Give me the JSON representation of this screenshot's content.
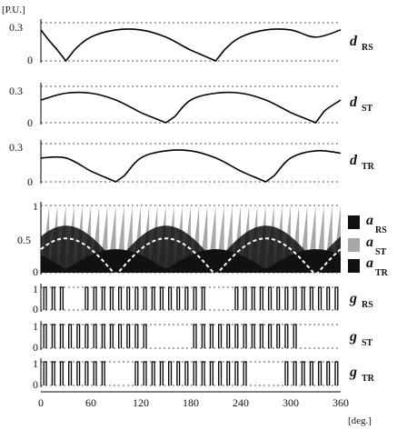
{
  "chart_data": {
    "type": "line",
    "y_unit_label": "[P.U.]",
    "x_unit_label": "[deg.]",
    "xlim": [
      0,
      360
    ],
    "x_ticks": [
      "0",
      "60",
      "120",
      "180",
      "240",
      "300",
      "360"
    ],
    "panels": [
      {
        "id": "dRS",
        "kind": "line",
        "label_main": "d",
        "label_sub": "RS",
        "ylim": [
          0,
          0.32
        ],
        "y_ticks": [
          "0.3",
          "0"
        ],
        "series": [
          {
            "x": [
              0,
              10,
              20,
              30,
              40,
              60,
              90,
              120,
              150,
              180,
              210,
              220,
              240,
              270,
              300,
              330,
              360
            ],
            "y": [
              0.26,
              0.17,
              0.09,
              0,
              0.09,
              0.2,
              0.26,
              0.26,
              0.2,
              0.09,
              0,
              0.09,
              0.2,
              0.26,
              0.26,
              0.2,
              0.26
            ]
          }
        ]
      },
      {
        "id": "dST",
        "kind": "line",
        "label_main": "d",
        "label_sub": "ST",
        "ylim": [
          0,
          0.32
        ],
        "y_ticks": [
          "0.3",
          "0"
        ],
        "series": [
          {
            "x": [
              0,
              30,
              60,
              90,
              120,
              140,
              150,
              160,
              180,
              210,
              240,
              270,
              300,
              320,
              330,
              340,
              360
            ],
            "y": [
              0.2,
              0.26,
              0.26,
              0.2,
              0.09,
              0.03,
              0,
              0.05,
              0.2,
              0.26,
              0.26,
              0.2,
              0.09,
              0.03,
              0,
              0.1,
              0.2
            ]
          }
        ]
      },
      {
        "id": "dTR",
        "kind": "line",
        "label_main": "d",
        "label_sub": "TR",
        "ylim": [
          0,
          0.32
        ],
        "y_ticks": [
          "0.3",
          "0"
        ],
        "series": [
          {
            "x": [
              0,
              30,
              60,
              80,
              90,
              100,
              120,
              150,
              180,
              210,
              240,
              260,
              270,
              280,
              300,
              330,
              360
            ],
            "y": [
              0.2,
              0.2,
              0.09,
              0.03,
              0,
              0.05,
              0.2,
              0.26,
              0.26,
              0.2,
              0.09,
              0.03,
              0,
              0.05,
              0.2,
              0.26,
              0.24
            ]
          }
        ]
      },
      {
        "id": "ramps",
        "kind": "area",
        "ylim": [
          0,
          1
        ],
        "y_ticks": [
          "1",
          "0.5",
          "0"
        ],
        "carrier_periods": 36,
        "legend": [
          {
            "main": "a",
            "sub": "RS",
            "color": "#111111"
          },
          {
            "main": "a",
            "sub": "ST",
            "color": "#a8a8a8"
          },
          {
            "main": "a",
            "sub": "TR",
            "color": "#111111"
          }
        ]
      },
      {
        "id": "gRS",
        "kind": "pulses",
        "label_main": "g",
        "label_sub": "RS",
        "ylim": [
          0,
          1
        ],
        "y_ticks": [
          "1",
          "0"
        ],
        "pulse_angles": [
          5,
          15,
          25,
          55,
          65,
          75,
          85,
          95,
          105,
          115,
          125,
          135,
          145,
          155,
          165,
          175,
          185,
          195,
          235,
          245,
          255,
          265,
          275,
          285,
          295,
          305,
          315,
          325,
          335,
          345,
          355
        ],
        "pulse_width_deg": 3
      },
      {
        "id": "gST",
        "kind": "pulses",
        "label_main": "g",
        "label_sub": "ST",
        "ylim": [
          0,
          1
        ],
        "y_ticks": [
          "1",
          "0"
        ],
        "pulse_angles": [
          5,
          15,
          25,
          35,
          45,
          55,
          65,
          75,
          85,
          95,
          105,
          115,
          125,
          185,
          195,
          205,
          215,
          225,
          235,
          245,
          255,
          265,
          275,
          285,
          295,
          305
        ],
        "pulse_width_deg": 3
      },
      {
        "id": "gTR",
        "kind": "pulses",
        "label_main": "g",
        "label_sub": "TR",
        "ylim": [
          0,
          1
        ],
        "y_ticks": [
          "1",
          "0"
        ],
        "pulse_angles": [
          5,
          15,
          25,
          35,
          45,
          55,
          65,
          75,
          115,
          125,
          135,
          145,
          155,
          165,
          175,
          185,
          195,
          205,
          215,
          225,
          235,
          245,
          295,
          305,
          315,
          325,
          335,
          345,
          355
        ],
        "pulse_width_deg": 3
      }
    ]
  }
}
